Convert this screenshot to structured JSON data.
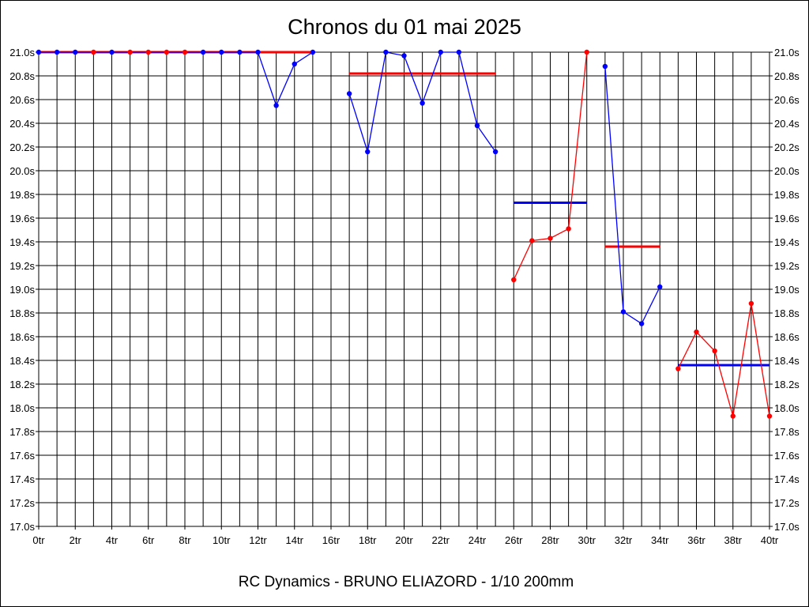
{
  "chart_data": {
    "type": "line",
    "title": "Chronos du 01 mai 2025",
    "subtitle": "RC Dynamics - BRUNO ELIAZORD - 1/10 200mm",
    "xlabel": "",
    "ylabel": "",
    "xlim": [
      0,
      40
    ],
    "ylim": [
      17.0,
      21.0
    ],
    "grid": true,
    "x_tick_labels": [
      "0tr",
      "2tr",
      "4tr",
      "6tr",
      "8tr",
      "10tr",
      "12tr",
      "14tr",
      "16tr",
      "18tr",
      "20tr",
      "22tr",
      "24tr",
      "26tr",
      "28tr",
      "30tr",
      "32tr",
      "34tr",
      "36tr",
      "38tr",
      "40tr"
    ],
    "y_tick_labels": [
      "17.0s",
      "17.2s",
      "17.4s",
      "17.6s",
      "17.8s",
      "18.0s",
      "18.2s",
      "18.4s",
      "18.6s",
      "18.8s",
      "19.0s",
      "19.2s",
      "19.4s",
      "19.6s",
      "19.8s",
      "20.0s",
      "20.2s",
      "20.4s",
      "20.6s",
      "20.8s",
      "21.0s"
    ],
    "colors": {
      "red": "#ff0000",
      "blue": "#0000ff",
      "grid": "#000000"
    },
    "series": [
      {
        "color": "#0000ff",
        "x": [
          0,
          1,
          2,
          3,
          4,
          5,
          6,
          7,
          8,
          9,
          10,
          11,
          12,
          13,
          14,
          15
        ],
        "y": [
          21.0,
          21.0,
          21.0,
          21.0,
          21.0,
          21.0,
          21.0,
          21.0,
          21.0,
          21.0,
          21.0,
          21.0,
          21.0,
          20.55,
          20.9,
          21.0
        ]
      },
      {
        "color": "#0000ff",
        "x": [
          17,
          18,
          19,
          20,
          21,
          22,
          23,
          24,
          25
        ],
        "y": [
          20.65,
          20.16,
          21.0,
          20.97,
          20.57,
          21.0,
          21.0,
          20.38,
          20.16
        ]
      },
      {
        "color": "#ff0000",
        "x": [
          26,
          27,
          28,
          29,
          30
        ],
        "y": [
          19.08,
          19.41,
          19.43,
          19.51,
          21.0
        ]
      },
      {
        "color": "#0000ff",
        "x": [
          31,
          32,
          33,
          34
        ],
        "y": [
          20.88,
          18.81,
          18.71,
          19.02
        ]
      },
      {
        "color": "#ff0000",
        "x": [
          35,
          36,
          37,
          38,
          39,
          40
        ],
        "y": [
          18.33,
          18.64,
          18.48,
          17.93,
          18.88,
          17.93
        ]
      }
    ],
    "markers": [
      {
        "x": 0,
        "y": 21.0,
        "color": "#0000ff"
      },
      {
        "x": 1,
        "y": 21.0,
        "color": "#0000ff"
      },
      {
        "x": 2,
        "y": 21.0,
        "color": "#0000ff"
      },
      {
        "x": 3,
        "y": 21.0,
        "color": "#ff0000"
      },
      {
        "x": 4,
        "y": 21.0,
        "color": "#0000ff"
      },
      {
        "x": 5,
        "y": 21.0,
        "color": "#ff0000"
      },
      {
        "x": 6,
        "y": 21.0,
        "color": "#ff0000"
      },
      {
        "x": 7,
        "y": 21.0,
        "color": "#ff0000"
      },
      {
        "x": 8,
        "y": 21.0,
        "color": "#ff0000"
      },
      {
        "x": 9,
        "y": 21.0,
        "color": "#0000ff"
      },
      {
        "x": 10,
        "y": 21.0,
        "color": "#0000ff"
      },
      {
        "x": 11,
        "y": 21.0,
        "color": "#0000ff"
      },
      {
        "x": 12,
        "y": 21.0,
        "color": "#0000ff"
      },
      {
        "x": 13,
        "y": 20.55,
        "color": "#0000ff"
      },
      {
        "x": 14,
        "y": 20.9,
        "color": "#0000ff"
      },
      {
        "x": 15,
        "y": 21.0,
        "color": "#0000ff"
      },
      {
        "x": 17,
        "y": 20.65,
        "color": "#0000ff"
      },
      {
        "x": 18,
        "y": 20.16,
        "color": "#0000ff"
      },
      {
        "x": 19,
        "y": 21.0,
        "color": "#0000ff"
      },
      {
        "x": 20,
        "y": 20.97,
        "color": "#0000ff"
      },
      {
        "x": 21,
        "y": 20.57,
        "color": "#0000ff"
      },
      {
        "x": 22,
        "y": 21.0,
        "color": "#0000ff"
      },
      {
        "x": 23,
        "y": 21.0,
        "color": "#0000ff"
      },
      {
        "x": 24,
        "y": 20.38,
        "color": "#0000ff"
      },
      {
        "x": 25,
        "y": 20.16,
        "color": "#0000ff"
      },
      {
        "x": 26,
        "y": 19.08,
        "color": "#ff0000"
      },
      {
        "x": 27,
        "y": 19.41,
        "color": "#ff0000"
      },
      {
        "x": 28,
        "y": 19.43,
        "color": "#ff0000"
      },
      {
        "x": 29,
        "y": 19.51,
        "color": "#ff0000"
      },
      {
        "x": 30,
        "y": 21.0,
        "color": "#ff0000"
      },
      {
        "x": 31,
        "y": 20.88,
        "color": "#0000ff"
      },
      {
        "x": 32,
        "y": 18.81,
        "color": "#0000ff"
      },
      {
        "x": 33,
        "y": 18.71,
        "color": "#0000ff"
      },
      {
        "x": 34,
        "y": 19.02,
        "color": "#0000ff"
      },
      {
        "x": 35,
        "y": 18.33,
        "color": "#ff0000"
      },
      {
        "x": 36,
        "y": 18.64,
        "color": "#ff0000"
      },
      {
        "x": 37,
        "y": 18.48,
        "color": "#ff0000"
      },
      {
        "x": 38,
        "y": 17.93,
        "color": "#ff0000"
      },
      {
        "x": 39,
        "y": 18.88,
        "color": "#ff0000"
      },
      {
        "x": 40,
        "y": 17.93,
        "color": "#ff0000"
      }
    ],
    "average_lines": [
      {
        "x_start": 0,
        "x_end": 15,
        "y": 21.0,
        "color": "#ff0000"
      },
      {
        "x_start": 17,
        "x_end": 25,
        "y": 20.82,
        "color": "#ff0000"
      },
      {
        "x_start": 26,
        "x_end": 30,
        "y": 19.73,
        "color": "#0000ff"
      },
      {
        "x_start": 31,
        "x_end": 34,
        "y": 19.36,
        "color": "#ff0000"
      },
      {
        "x_start": 35,
        "x_end": 40,
        "y": 18.36,
        "color": "#0000ff"
      }
    ]
  }
}
